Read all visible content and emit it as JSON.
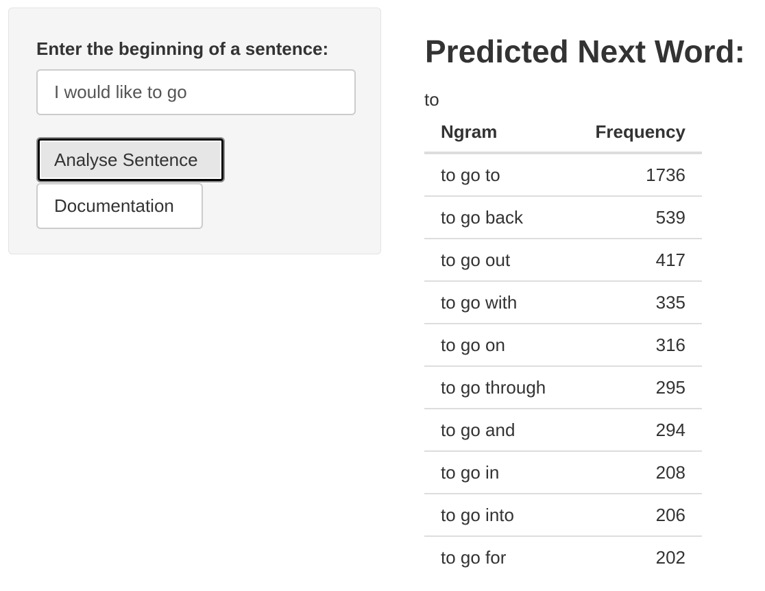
{
  "sidebar": {
    "input_label": "Enter the beginning of a sentence:",
    "input_value": "I would like to go",
    "analyse_button": "Analyse Sentence",
    "documentation_button": "Documentation"
  },
  "main": {
    "title": "Predicted Next Word:",
    "prediction": "to",
    "table": {
      "headers": {
        "ngram": "Ngram",
        "frequency": "Frequency"
      },
      "rows": [
        {
          "ngram": "to go to",
          "frequency": "1736"
        },
        {
          "ngram": "to go back",
          "frequency": "539"
        },
        {
          "ngram": "to go out",
          "frequency": "417"
        },
        {
          "ngram": "to go with",
          "frequency": "335"
        },
        {
          "ngram": "to go on",
          "frequency": "316"
        },
        {
          "ngram": "to go through",
          "frequency": "295"
        },
        {
          "ngram": "to go and",
          "frequency": "294"
        },
        {
          "ngram": "to go in",
          "frequency": "208"
        },
        {
          "ngram": "to go into",
          "frequency": "206"
        },
        {
          "ngram": "to go for",
          "frequency": "202"
        }
      ]
    }
  }
}
